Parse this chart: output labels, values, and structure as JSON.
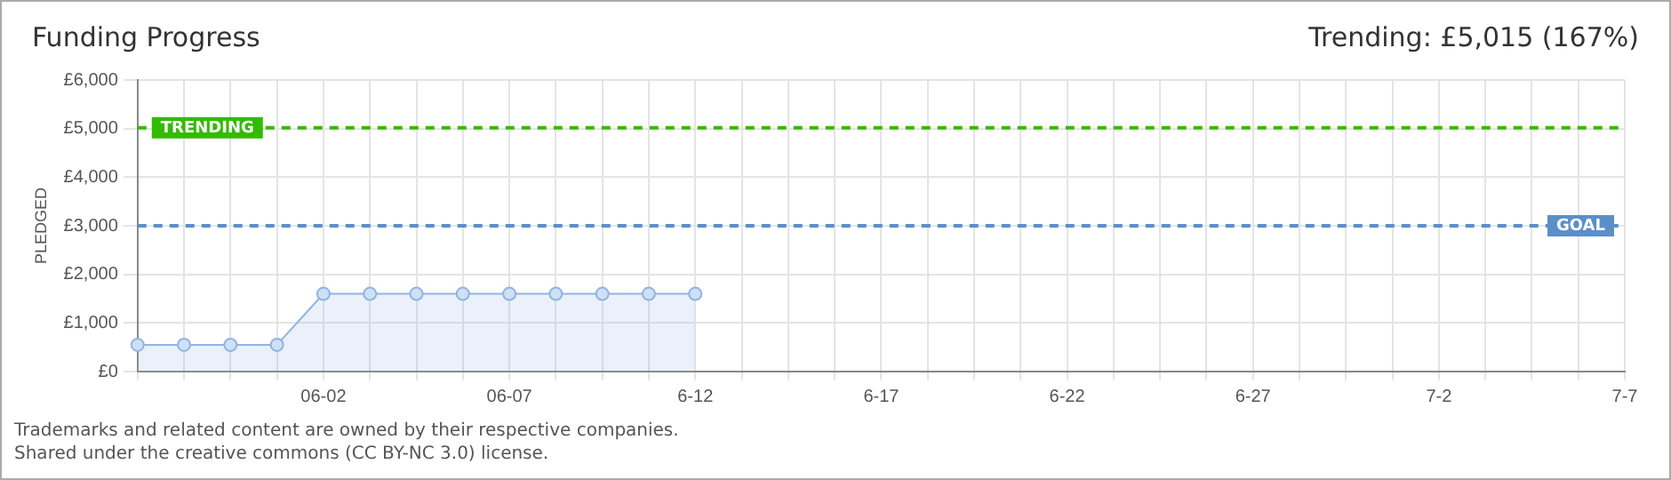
{
  "chart_data": {
    "type": "area",
    "title": "Funding Progress",
    "ylabel": "PLEDGED",
    "categories": [
      null,
      null,
      null,
      null,
      "06-02",
      null,
      null,
      null,
      "06-07",
      null,
      null,
      null,
      "6-12",
      null,
      null,
      null,
      "6-17",
      null,
      null,
      null,
      "6-22",
      null,
      null,
      null,
      "6-27",
      null,
      null,
      null,
      "7-2",
      null,
      null,
      null,
      "7-7"
    ],
    "series": [
      {
        "color": "#8fb4e3",
        "values": [
          550,
          550,
          550,
          550,
          1600,
          1600,
          1600,
          1600,
          1600,
          1600,
          1600,
          1600,
          1600,
          null,
          null,
          null,
          null,
          null,
          null,
          null,
          null,
          null,
          null,
          null,
          null,
          null,
          null,
          null,
          null,
          null,
          null,
          null,
          null
        ]
      }
    ],
    "ylim": [
      0,
      6000
    ],
    "yticks": [
      {
        "value": 0,
        "label": "£0"
      },
      {
        "value": 1000,
        "label": "£1,000"
      },
      {
        "value": 2000,
        "label": "£2,000"
      },
      {
        "value": 3000,
        "label": "£3,000"
      },
      {
        "value": 4000,
        "label": "£4,000"
      },
      {
        "value": 5000,
        "label": "£5,000"
      },
      {
        "value": 6000,
        "label": "£6,000"
      }
    ],
    "ref_lines": [
      {
        "axis": "y",
        "value": 5015,
        "label": "TRENDING",
        "color": "#33bb00",
        "line_style": "dashed"
      },
      {
        "axis": "y",
        "value": 3000,
        "label": "GOAL",
        "color": "#5b8fc8",
        "line_style": "dashed"
      }
    ],
    "grid": true,
    "legend": false,
    "marker": "circle",
    "line_style": "solid",
    "annotations": [
      "Trending: £5,015 (167%)",
      "Trademarks and related content are owned by their respective companies.",
      "Shared under the creative commons (CC BY-NC 3.0) license."
    ]
  }
}
